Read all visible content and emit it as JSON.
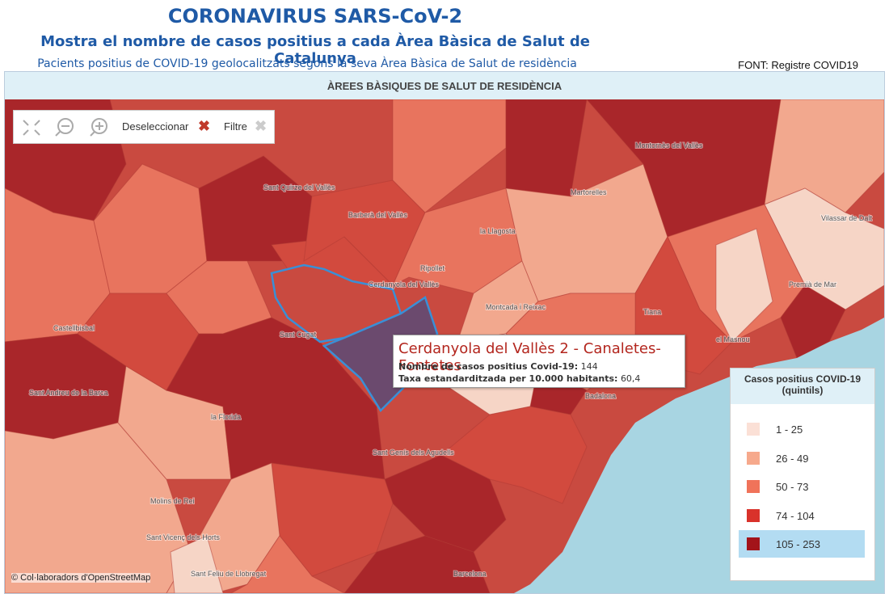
{
  "header": {
    "title": "CORONAVIRUS SARS-CoV-2",
    "subtitle": "Mostra el nombre de casos positius a cada Àrea Bàsica de Salut de Catalunya",
    "description": "Pacients positius de COVID-19 geolocalitzats segons la seva Àrea Bàsica de Salut de residència",
    "source": "FONT: Registre COVID19"
  },
  "map": {
    "title": "ÀREES BÀSIQUES DE SALUT DE RESIDÈNCIA",
    "toolbar": {
      "deselect": "Deseleccionar",
      "filter": "Filtre"
    },
    "places": [
      "Sant Quirze del Vallès",
      "Barberà del Vallès",
      "Montornès del Vallès",
      "Martorelles",
      "la Llagosta",
      "Ripollet",
      "Cerdanyola del Vallès",
      "Castellbisbal",
      "Sant Cugat",
      "Montcada i Reixac",
      "Tiana",
      "el Masnou",
      "Premià de Mar",
      "Sant Andreu de la Barca",
      "la Florida",
      "Sant Genís dels Agudells",
      "Molins de Rei",
      "Sant Vicenç dels Horts",
      "Sant Feliu de Llobregat",
      "Badalona",
      "Barcelona",
      "Vilassar de Dalt"
    ],
    "attribution": "© Col·laboradors d'OpenStreetMap"
  },
  "tooltip": {
    "name": "Cerdanyola del Vallès 2 - Canaletes-Fontetes",
    "cases_label": "Nombre de casos positius Covid-19:",
    "cases": "144",
    "rate_label": "Taxa estandarditzada per 10.000 habitants:",
    "rate": "60,4"
  },
  "legend": {
    "title": "Casos positius COVID-19 (quintils)",
    "items": [
      "1 - 25",
      "26 - 49",
      "50 - 73",
      "74 - 104",
      "105 - 253"
    ]
  }
}
